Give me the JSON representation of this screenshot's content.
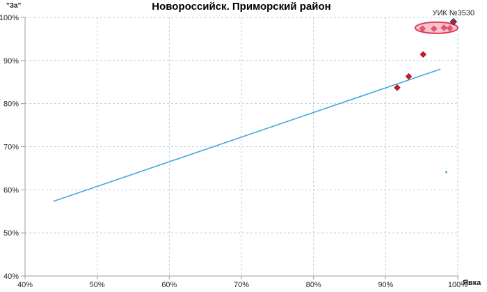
{
  "chart_data": {
    "type": "scatter",
    "title": "Новороссийск. Приморский район",
    "xlabel": "Явка",
    "ylabel": "\"За\"",
    "xlim": [
      40,
      100
    ],
    "ylim": [
      40,
      100
    ],
    "x_ticks": [
      "40%",
      "50%",
      "60%",
      "70%",
      "80%",
      "90%",
      "100%"
    ],
    "y_ticks": [
      "40%",
      "50%",
      "60%",
      "70%",
      "80%",
      "90%",
      "100%"
    ],
    "grid": "dashed, light-blue, every 10% both axes",
    "legend": "none",
    "points": [
      {
        "x": 91.6,
        "y": 83.7
      },
      {
        "x": 93.2,
        "y": 86.3
      },
      {
        "x": 95.2,
        "y": 91.4
      },
      {
        "x": 95.1,
        "y": 97.4,
        "in_ellipse": true
      },
      {
        "x": 96.7,
        "y": 97.4,
        "in_ellipse": true
      },
      {
        "x": 98.1,
        "y": 97.6,
        "in_ellipse": true
      },
      {
        "x": 98.9,
        "y": 97.5,
        "in_ellipse": true
      },
      {
        "x": 99.4,
        "y": 99.0,
        "label": "УИК №3530"
      }
    ],
    "trend_line": {
      "x1": 43.9,
      "y1": 57.3,
      "x2": 97.6,
      "y2": 88.0
    },
    "highlight_ellipse": {
      "cx": 97.05,
      "cy": 97.6,
      "rx": 2.95,
      "ry": 1.3
    },
    "stray_mark": {
      "x": 98.4,
      "y": 64.1
    },
    "annotation": "УИК №3530",
    "colors": {
      "grid": "#b9cde6",
      "axis": "#9b9b9b",
      "trend": "#45a7d9",
      "marker_fill": "#d41a26",
      "marker_stroke": "#9e0a12",
      "labeled_marker_stroke": "#1f3864",
      "ellipse_fill": "rgba(244,140,165,0.55)",
      "ellipse_stroke": "#dd3a58",
      "tick_text": "#262626",
      "title_text": "#000000"
    }
  }
}
